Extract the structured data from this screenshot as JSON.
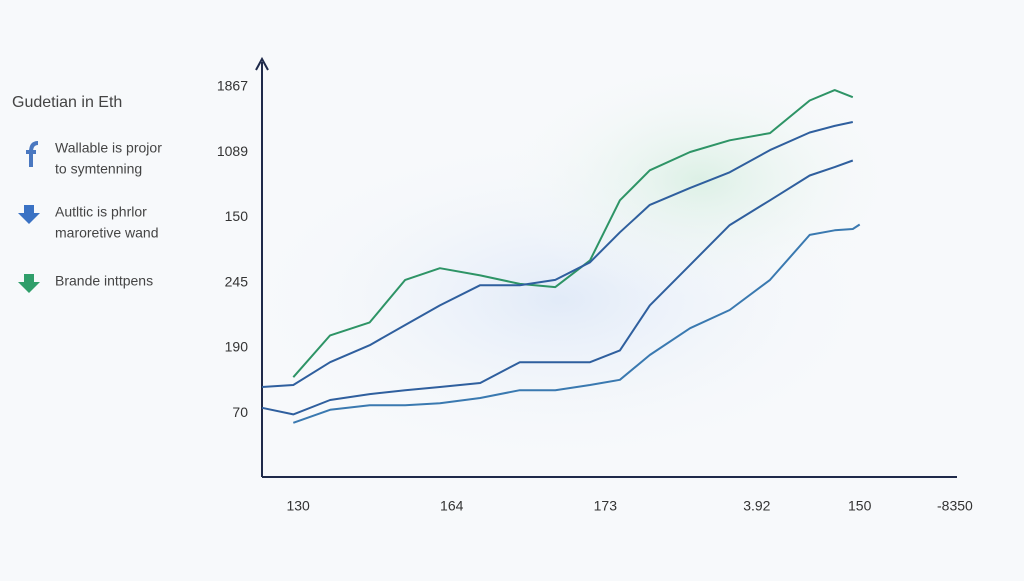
{
  "chart_data": {
    "type": "line",
    "legend_title": "Gudetian in Eth",
    "legend_items": [
      [
        "Wallable is projor",
        "to symtenning"
      ],
      [
        "Autltic is phrlor",
        "maroretive wand"
      ],
      [
        "Brande inttpens"
      ]
    ],
    "legend_colors": [
      "#4a78c0",
      "#3a72c4",
      "#2f9e6a"
    ],
    "x": [
      0,
      4.5,
      9.8,
      15.5,
      20.6,
      25.6,
      31.4,
      37.1,
      42.2,
      47.2,
      51.5,
      55.8,
      61.6,
      67.3,
      73.1,
      78.8,
      82.4,
      85.0,
      86.0
    ],
    "series": [
      {
        "color": "#2e9466",
        "values": [
          null,
          0.55,
          1.19,
          1.39,
          2.04,
          2.22,
          2.11,
          1.98,
          1.93,
          2.34,
          3.26,
          3.72,
          4.0,
          4.18,
          4.29,
          4.79,
          4.95,
          4.84,
          null
        ]
      },
      {
        "color": "#2f5f9e",
        "values": [
          0.4,
          0.43,
          0.78,
          1.04,
          1.35,
          1.65,
          1.96,
          1.96,
          2.04,
          2.31,
          2.77,
          3.19,
          3.45,
          3.69,
          4.03,
          4.3,
          4.4,
          4.46,
          null
        ]
      },
      {
        "color": "#2f5f9e",
        "values": [
          0.08,
          -0.02,
          0.2,
          0.29,
          0.35,
          0.4,
          0.46,
          0.78,
          0.78,
          0.78,
          0.96,
          1.65,
          2.27,
          2.88,
          3.26,
          3.64,
          3.77,
          3.87,
          null
        ]
      },
      {
        "color": "#3a79b0",
        "values": [
          null,
          -0.15,
          0.05,
          0.12,
          0.12,
          0.15,
          0.23,
          0.35,
          0.35,
          0.43,
          0.51,
          0.89,
          1.3,
          1.58,
          2.04,
          2.73,
          2.8,
          2.82,
          2.89
        ]
      }
    ],
    "xlim": [
      0,
      100
    ],
    "xticks": [
      {
        "value": 5.2,
        "label": "130"
      },
      {
        "value": 27.3,
        "label": "164"
      },
      {
        "value": 49.4,
        "label": "173"
      },
      {
        "value": 71.2,
        "label": "3.92"
      },
      {
        "value": 86.0,
        "label": "150"
      },
      {
        "value": 99.7,
        "label": "-8350"
      }
    ],
    "ylim": [
      -0.98,
      5.38
    ],
    "yticks": [
      {
        "value": 0,
        "label": "70"
      },
      {
        "value": 1,
        "label": "190"
      },
      {
        "value": 2,
        "label": "245"
      },
      {
        "value": 3,
        "label": "150"
      },
      {
        "value": 4,
        "label": "1089"
      },
      {
        "value": 5,
        "label": "1867"
      }
    ]
  }
}
